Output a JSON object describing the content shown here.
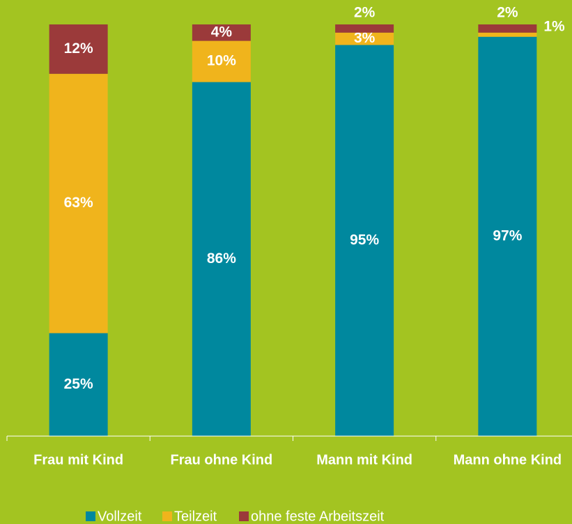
{
  "chart_data": {
    "type": "stacked_bar",
    "categories": [
      "Frau mit Kind",
      "Frau ohne Kind",
      "Mann mit Kind",
      "Mann ohne Kind"
    ],
    "series": [
      {
        "name": "Vollzeit",
        "color": "#00889e",
        "values": [
          25,
          86,
          95,
          97
        ],
        "value_labels": [
          "25%",
          "86%",
          "95%",
          "97%"
        ]
      },
      {
        "name": "Teilzeit",
        "color": "#f0b41c",
        "values": [
          63,
          10,
          3,
          1
        ],
        "value_labels": [
          "63%",
          "10%",
          "3%",
          "1%"
        ]
      },
      {
        "name": "ohne feste Arbeitszeit",
        "color": "#9b3a3a",
        "values": [
          12,
          4,
          2,
          2
        ],
        "value_labels": [
          "12%",
          "4%",
          "2%",
          "2%"
        ]
      }
    ],
    "ylim": [
      0,
      100
    ],
    "background": "#a3c421"
  }
}
